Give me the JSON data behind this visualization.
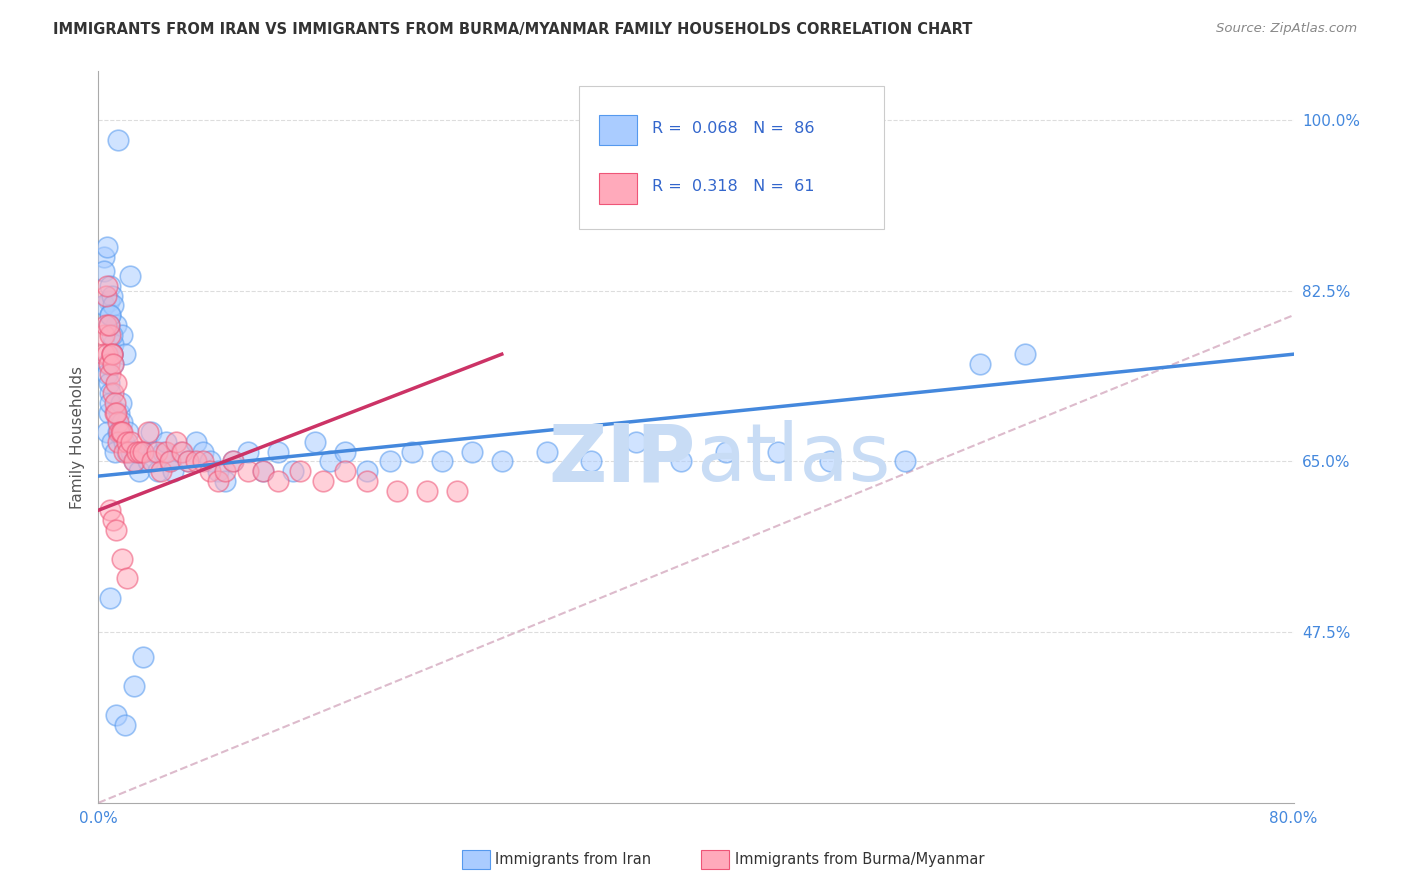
{
  "title": "IMMIGRANTS FROM IRAN VS IMMIGRANTS FROM BURMA/MYANMAR FAMILY HOUSEHOLDS CORRELATION CHART",
  "source": "Source: ZipAtlas.com",
  "ylabel": "Family Households",
  "xlim": [
    0.0,
    0.8
  ],
  "ylim": [
    0.3,
    1.05
  ],
  "xticks": [
    0.0,
    0.1,
    0.2,
    0.3,
    0.4,
    0.5,
    0.6,
    0.7,
    0.8
  ],
  "xticklabels": [
    "0.0%",
    "",
    "",
    "",
    "",
    "",
    "",
    "",
    "80.0%"
  ],
  "yticks": [
    0.475,
    0.65,
    0.825,
    1.0
  ],
  "yticklabels": [
    "47.5%",
    "65.0%",
    "82.5%",
    "100.0%"
  ],
  "legend_iran_R": "0.068",
  "legend_iran_N": "86",
  "legend_burma_R": "0.318",
  "legend_burma_N": "61",
  "color_iran_fill": "#aaccff",
  "color_iran_edge": "#5599ee",
  "color_burma_fill": "#ffaabb",
  "color_burma_edge": "#ee5577",
  "color_iran_line": "#4488dd",
  "color_burma_line": "#cc3366",
  "color_diagonal": "#cccccc",
  "watermark_color": "#c8dcf5",
  "iran_trend_x0": 0.0,
  "iran_trend_y0": 0.635,
  "iran_trend_x1": 0.8,
  "iran_trend_y1": 0.76,
  "burma_trend_x0": 0.0,
  "burma_trend_y0": 0.6,
  "burma_trend_x1": 0.27,
  "burma_trend_y1": 0.76,
  "iran_x": [
    0.013,
    0.004,
    0.004,
    0.006,
    0.007,
    0.004,
    0.008,
    0.009,
    0.008,
    0.012,
    0.016,
    0.01,
    0.018,
    0.01,
    0.021,
    0.009,
    0.006,
    0.009,
    0.007,
    0.008,
    0.006,
    0.007,
    0.008,
    0.009,
    0.01,
    0.007,
    0.008,
    0.006,
    0.009,
    0.011,
    0.013,
    0.014,
    0.015,
    0.016,
    0.017,
    0.019,
    0.02,
    0.022,
    0.024,
    0.025,
    0.027,
    0.03,
    0.033,
    0.035,
    0.037,
    0.04,
    0.043,
    0.045,
    0.048,
    0.05,
    0.055,
    0.06,
    0.065,
    0.07,
    0.075,
    0.08,
    0.085,
    0.09,
    0.1,
    0.11,
    0.12,
    0.13,
    0.145,
    0.155,
    0.165,
    0.18,
    0.195,
    0.21,
    0.23,
    0.25,
    0.27,
    0.3,
    0.33,
    0.36,
    0.39,
    0.42,
    0.455,
    0.49,
    0.54,
    0.59,
    0.008,
    0.012,
    0.018,
    0.024,
    0.03,
    0.62
  ],
  "iran_y": [
    0.98,
    0.86,
    0.845,
    0.87,
    0.815,
    0.81,
    0.83,
    0.82,
    0.8,
    0.79,
    0.78,
    0.77,
    0.76,
    0.81,
    0.84,
    0.76,
    0.75,
    0.78,
    0.79,
    0.8,
    0.74,
    0.73,
    0.72,
    0.76,
    0.75,
    0.7,
    0.71,
    0.68,
    0.67,
    0.66,
    0.68,
    0.7,
    0.71,
    0.69,
    0.67,
    0.66,
    0.68,
    0.66,
    0.65,
    0.66,
    0.64,
    0.66,
    0.65,
    0.68,
    0.66,
    0.64,
    0.66,
    0.67,
    0.65,
    0.64,
    0.66,
    0.65,
    0.67,
    0.66,
    0.65,
    0.64,
    0.63,
    0.65,
    0.66,
    0.64,
    0.66,
    0.64,
    0.67,
    0.65,
    0.66,
    0.64,
    0.65,
    0.66,
    0.65,
    0.66,
    0.65,
    0.66,
    0.65,
    0.67,
    0.65,
    0.66,
    0.66,
    0.65,
    0.65,
    0.75,
    0.51,
    0.39,
    0.38,
    0.42,
    0.45,
    0.76
  ],
  "burma_x": [
    0.004,
    0.005,
    0.004,
    0.006,
    0.007,
    0.005,
    0.006,
    0.008,
    0.007,
    0.009,
    0.008,
    0.01,
    0.009,
    0.011,
    0.01,
    0.012,
    0.011,
    0.013,
    0.012,
    0.014,
    0.013,
    0.015,
    0.016,
    0.017,
    0.019,
    0.02,
    0.022,
    0.024,
    0.026,
    0.028,
    0.03,
    0.033,
    0.036,
    0.039,
    0.042,
    0.045,
    0.048,
    0.052,
    0.056,
    0.06,
    0.065,
    0.07,
    0.075,
    0.08,
    0.085,
    0.09,
    0.1,
    0.11,
    0.12,
    0.135,
    0.15,
    0.165,
    0.18,
    0.2,
    0.22,
    0.24,
    0.008,
    0.01,
    0.012,
    0.016,
    0.019
  ],
  "burma_y": [
    0.78,
    0.79,
    0.76,
    0.76,
    0.75,
    0.82,
    0.83,
    0.78,
    0.79,
    0.76,
    0.74,
    0.72,
    0.76,
    0.7,
    0.75,
    0.73,
    0.71,
    0.69,
    0.7,
    0.68,
    0.67,
    0.68,
    0.68,
    0.66,
    0.67,
    0.66,
    0.67,
    0.65,
    0.66,
    0.66,
    0.66,
    0.68,
    0.65,
    0.66,
    0.64,
    0.66,
    0.65,
    0.67,
    0.66,
    0.65,
    0.65,
    0.65,
    0.64,
    0.63,
    0.64,
    0.65,
    0.64,
    0.64,
    0.63,
    0.64,
    0.63,
    0.64,
    0.63,
    0.62,
    0.62,
    0.62,
    0.6,
    0.59,
    0.58,
    0.55,
    0.53
  ]
}
